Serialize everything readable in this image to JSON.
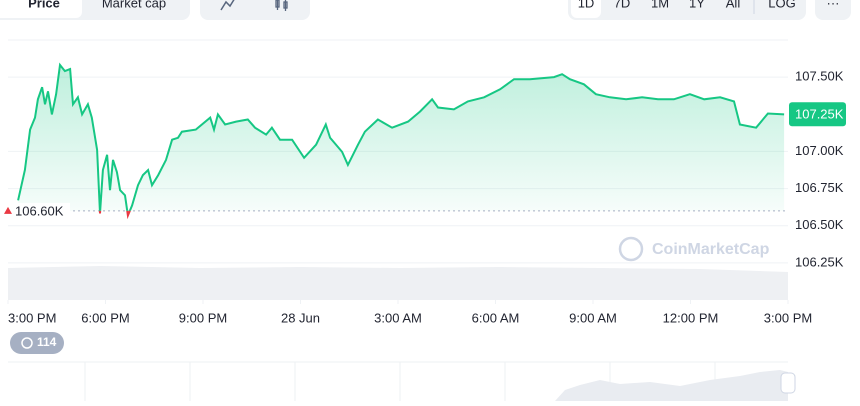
{
  "tabs": [
    "Price",
    "Market cap"
  ],
  "ranges": [
    "1D",
    "7D",
    "1M",
    "1Y",
    "All"
  ],
  "log_label": "LOG",
  "more_label": "···",
  "badge": "114",
  "watermark": "CoinMarketCap",
  "chart_data": {
    "type": "line",
    "color": "#16c784",
    "below_color": "#ea3943",
    "x": [
      0.31,
      0.52,
      0.68,
      0.83,
      0.92,
      1.05,
      1.14,
      1.23,
      1.35,
      1.48,
      1.6,
      1.75,
      1.91,
      2.0,
      2.15,
      2.28,
      2.46,
      2.58,
      2.74,
      2.83,
      2.92,
      3.05,
      3.14,
      3.23,
      3.35,
      3.45,
      3.6,
      3.69,
      3.82,
      4.0,
      4.15,
      4.31,
      4.43,
      4.62,
      4.86,
      5.05,
      5.23,
      5.35,
      5.78,
      6.22,
      6.34,
      6.46,
      6.68,
      7.02,
      7.38,
      7.6,
      7.94,
      8.12,
      8.37,
      8.74,
      9.11,
      9.48,
      9.78,
      9.91,
      10.28,
      10.46,
      10.77,
      10.98,
      11.38,
      11.82,
      12.31,
      12.68,
      13.05,
      13.23,
      13.72,
      14.15,
      14.65,
      15.14,
      15.57,
      16.06,
      16.8,
      17.05,
      17.29,
      17.72,
      18.09,
      18.52,
      19.02,
      19.51,
      20.0,
      20.49,
      20.98,
      21.42,
      21.91,
      22.34,
      22.52,
      23.02,
      23.38,
      23.88
    ],
    "values": [
      106671,
      106875,
      107147,
      107228,
      107351,
      107432,
      107317,
      107405,
      107249,
      107385,
      107582,
      107541,
      107554,
      107317,
      107364,
      107249,
      107317,
      107228,
      107011,
      106583,
      106875,
      106977,
      106739,
      106943,
      106861,
      106739,
      106705,
      106569,
      106637,
      106773,
      106841,
      106875,
      106773,
      106841,
      106943,
      107079,
      107092,
      107133,
      107147,
      107228,
      107147,
      107249,
      107181,
      107201,
      107215,
      107160,
      107113,
      107160,
      107079,
      107079,
      106957,
      107045,
      107181,
      107092,
      106997,
      106909,
      107045,
      107133,
      107215,
      107160,
      107201,
      107269,
      107351,
      107296,
      107283,
      107337,
      107364,
      107418,
      107486,
      107486,
      107500,
      107520,
      107486,
      107452,
      107385,
      107364,
      107351,
      107364,
      107351,
      107351,
      107385,
      107351,
      107364,
      107337,
      107181,
      107160,
      107255,
      107249
    ],
    "xlim": [
      0,
      24
    ],
    "xticks": [
      {
        "value": 0,
        "label": "3:00 PM"
      },
      {
        "value": 3,
        "label": "6:00 PM"
      },
      {
        "value": 6,
        "label": "9:00 PM"
      },
      {
        "value": 9,
        "label": "28 Jun"
      },
      {
        "value": 12,
        "label": "3:00 AM"
      },
      {
        "value": 15,
        "label": "6:00 AM"
      },
      {
        "value": 18,
        "label": "9:00 AM"
      },
      {
        "value": 21,
        "label": "12:00 PM"
      },
      {
        "value": 24,
        "label": "3:00 PM"
      }
    ],
    "ylim": [
      106000,
      107750
    ],
    "yticks": [
      {
        "value": 107500,
        "label": "107.50K"
      },
      {
        "value": 107000,
        "label": "107.00K"
      },
      {
        "value": 106750,
        "label": "106.75K"
      },
      {
        "value": 106500,
        "label": "106.50K"
      },
      {
        "value": 106250,
        "label": "106.25K"
      }
    ],
    "grid": true,
    "reference": {
      "value": 106600,
      "label": "106.60K"
    },
    "current_price": {
      "value": 107250,
      "label": "107.25K"
    }
  }
}
